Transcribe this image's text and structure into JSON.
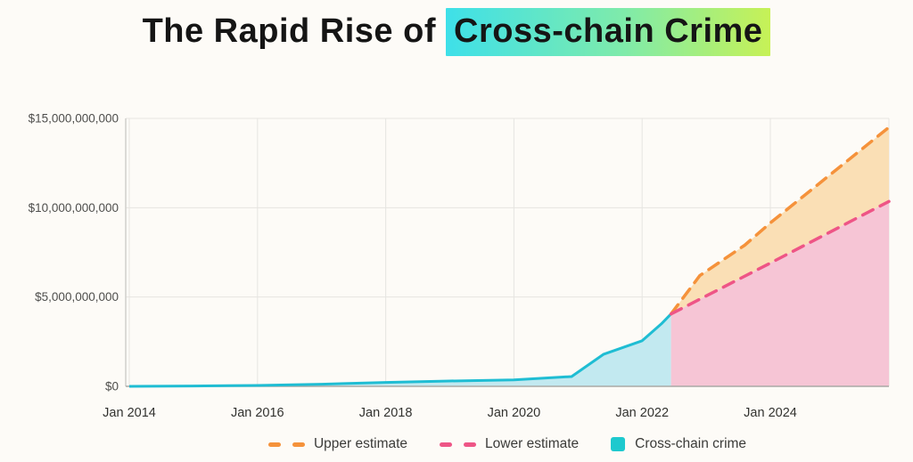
{
  "title": {
    "prefix": "The Rapid Rise of ",
    "highlight": "Cross-chain Crime",
    "highlight_gradient": [
      "#3EE0E9",
      "#7FEBAA",
      "#C7F156"
    ]
  },
  "chart_data": {
    "type": "area",
    "title": "The Rapid Rise of Cross-chain Crime",
    "values_unit": "USD billions",
    "x_range": [
      2014,
      2025.85
    ],
    "y_range": [
      0,
      15
    ],
    "grid": true,
    "legend_position": "bottom",
    "x_ticks": [
      {
        "year": 2014,
        "label": "Jan 2014"
      },
      {
        "year": 2016,
        "label": "Jan 2016"
      },
      {
        "year": 2018,
        "label": "Jan 2018"
      },
      {
        "year": 2020,
        "label": "Jan 2020"
      },
      {
        "year": 2022,
        "label": "Jan 2022"
      },
      {
        "year": 2024,
        "label": "Jan 2024"
      }
    ],
    "y_ticks": [
      {
        "value": 0,
        "label": "$0"
      },
      {
        "value": 5,
        "label": "$5,000,000,000"
      },
      {
        "value": 10,
        "label": "$10,000,000,000"
      },
      {
        "value": 15,
        "label": "$15,000,000,000"
      }
    ],
    "series": [
      {
        "name": "Cross-chain crime",
        "line_style": "solid",
        "color": "#1FBDD3",
        "fill_color": "#C2E9F0",
        "fill_mode": "to-zero",
        "points": [
          [
            2014,
            0
          ],
          [
            2015,
            0.02
          ],
          [
            2016,
            0.05
          ],
          [
            2017,
            0.12
          ],
          [
            2018,
            0.22
          ],
          [
            2019,
            0.3
          ],
          [
            2020,
            0.36
          ],
          [
            2020.9,
            0.55
          ],
          [
            2021.4,
            1.8
          ],
          [
            2022,
            2.55
          ],
          [
            2022.3,
            3.5
          ],
          [
            2022.45,
            4.05
          ]
        ]
      },
      {
        "name": "Upper estimate",
        "line_style": "dashed",
        "color": "#F5923B",
        "fill_color": "#FADFB5",
        "fill_mode": "to-lower",
        "points": [
          [
            2022.45,
            4.05
          ],
          [
            2022.9,
            6.2
          ],
          [
            2023.6,
            7.9
          ],
          [
            2024,
            9.15
          ],
          [
            2025.85,
            14.5
          ]
        ]
      },
      {
        "name": "Lower estimate",
        "line_style": "dashed",
        "color": "#EE5586",
        "fill_color": "#F6C5D5",
        "fill_mode": "to-zero",
        "points": [
          [
            2022.45,
            4.05
          ],
          [
            2024,
            6.9
          ],
          [
            2025.85,
            10.35
          ]
        ]
      }
    ]
  },
  "legend": {
    "items": [
      {
        "label": "Upper estimate",
        "swatch": "dashes",
        "color": "#F5923B"
      },
      {
        "label": "Lower estimate",
        "swatch": "dashes",
        "color": "#EE5586"
      },
      {
        "label": "Cross-chain crime",
        "swatch": "square",
        "color": "#1EC9CE"
      }
    ]
  }
}
